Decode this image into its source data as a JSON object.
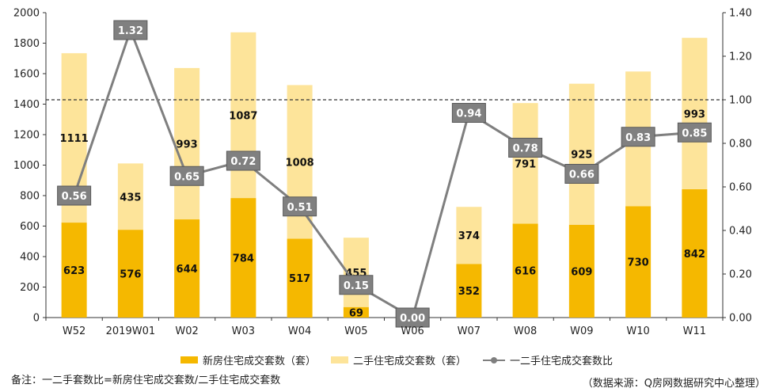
{
  "chart_data": {
    "type": "bar",
    "stacked": true,
    "categories": [
      "W52",
      "2019W01",
      "W02",
      "W03",
      "W04",
      "W05",
      "W06",
      "W07",
      "W08",
      "W09",
      "W10",
      "W11"
    ],
    "series": [
      {
        "name": "新房住宅成交套数（套）",
        "type": "bar",
        "axis": "left",
        "color": "#f5b800",
        "values": [
          623,
          576,
          644,
          784,
          517,
          69,
          0,
          352,
          616,
          609,
          730,
          842
        ]
      },
      {
        "name": "二手住宅成交套数（套）",
        "type": "bar",
        "axis": "left",
        "color": "#fde49a",
        "values": [
          1111,
          435,
          993,
          1087,
          1008,
          455,
          0,
          374,
          791,
          925,
          884,
          993
        ]
      },
      {
        "name": "一二手住宅成交套数比",
        "type": "line",
        "axis": "right",
        "color": "#7f7f7f",
        "values": [
          0.56,
          1.32,
          0.65,
          0.72,
          0.51,
          0.15,
          0.0,
          0.94,
          0.78,
          0.66,
          0.83,
          0.85
        ],
        "labels": [
          "0.56",
          "1.32",
          "0.65",
          "0.72",
          "0.51",
          "0.15",
          "0.00",
          "0.94",
          "0.78",
          "0.66",
          "0.83",
          "0.85"
        ]
      }
    ],
    "y_left": {
      "ticks": [
        "0",
        "200",
        "400",
        "600",
        "800",
        "1000",
        "1200",
        "1400",
        "1600",
        "1800",
        "2000"
      ],
      "ylim": [
        0,
        2000
      ]
    },
    "y_right": {
      "ticks": [
        "0.00",
        "0.20",
        "0.40",
        "0.60",
        "0.80",
        "1.00",
        "1.20",
        "1.40"
      ],
      "ylim": [
        0,
        1.4
      ]
    },
    "reference_line": {
      "axis": "right",
      "value": 1.0,
      "style": "dashed"
    },
    "grid": false,
    "legend_position": "bottom"
  },
  "note": "备注：一二手套数比=新房住宅成交套数/二手住宅成交套数",
  "source": "（数据来源：Q房网数据研究中心整理）"
}
